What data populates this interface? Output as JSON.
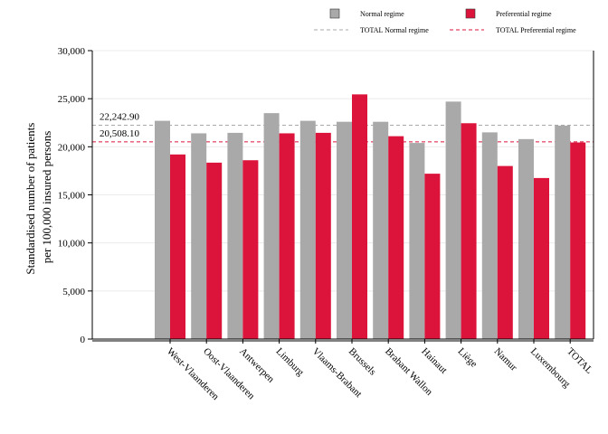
{
  "chart_data": {
    "type": "bar",
    "categories": [
      "West-Vlaanderen",
      "Oost-Vlaanderen",
      "Antwerpen",
      "Limburg",
      "Vlaams-Brabant",
      "Brussels",
      "Brabant Wallon",
      "Hainaut",
      "Liège",
      "Namur",
      "Luxembourg",
      "TOTAL"
    ],
    "series": [
      {
        "name": "Normal regime",
        "color": "#a9a9a9",
        "values": [
          22700,
          21400,
          21450,
          23500,
          22700,
          22600,
          22600,
          20400,
          24700,
          21500,
          20800,
          22200
        ]
      },
      {
        "name": "Preferential regime",
        "color": "#dc143c",
        "values": [
          19200,
          18350,
          18600,
          21400,
          21450,
          25450,
          21100,
          17200,
          22450,
          18000,
          16750,
          20450
        ]
      }
    ],
    "reference_lines": [
      {
        "name": "TOTAL Normal regime",
        "value": 22242.9,
        "label": "22,242.90",
        "color": "#a9a9a9",
        "dash": "dashed"
      },
      {
        "name": "TOTAL Preferential regime",
        "value": 20508.1,
        "label": "20,508.10",
        "color": "#dc143c",
        "dash": "dashed"
      }
    ],
    "ylabel_lines": [
      "Standardised number of patients",
      "per 100,000 insured persons"
    ],
    "yticks": [
      0,
      5000,
      10000,
      15000,
      20000,
      25000,
      30000
    ],
    "ytick_labels": [
      "0",
      "5,000",
      "10,000",
      "15,000",
      "20,000",
      "25,000",
      "30,000"
    ],
    "ylim": [
      0,
      30000
    ],
    "grid": true,
    "legend_position": "top-right"
  }
}
